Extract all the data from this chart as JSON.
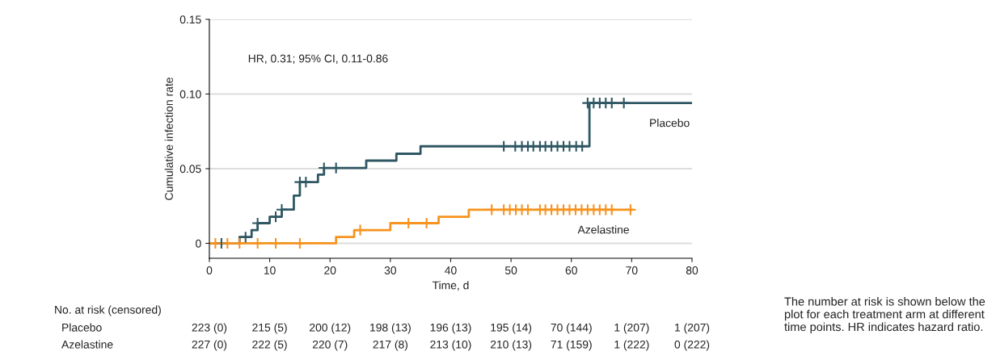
{
  "chart_data": {
    "type": "step",
    "xlabel": "Time, d",
    "ylabel": "Cumulative infection rate",
    "xlim": [
      0,
      80
    ],
    "xticks": [
      0,
      10,
      20,
      30,
      40,
      50,
      60,
      70,
      80
    ],
    "ylim": [
      -0.01,
      0.15
    ],
    "yticks": [
      0,
      0.05,
      {
        "value": 0.1,
        "label": "0.10"
      },
      0.15
    ],
    "grid": "y",
    "legend": false,
    "line_style": "solid",
    "series": [
      {
        "name": "Placebo",
        "color": "#2f5763",
        "x": [
          0,
          5,
          7,
          8,
          10,
          12,
          14,
          15,
          18,
          19,
          26,
          31,
          35,
          63,
          80
        ],
        "values": [
          0,
          0.0042,
          0.0088,
          0.0135,
          0.0178,
          0.0226,
          0.032,
          0.041,
          0.046,
          0.0505,
          0.0554,
          0.06,
          0.065,
          0.094,
          0.094
        ]
      },
      {
        "name": "Azelastine",
        "color": "#f7931e",
        "x": [
          0,
          21,
          24,
          30,
          38,
          43,
          70
        ],
        "values": [
          0,
          0.0043,
          0.0088,
          0.0135,
          0.0178,
          0.0225,
          0.0225
        ]
      },
      {
        "type": "scatter",
        "marker": "cross",
        "color": "#2f5763",
        "x": [
          2,
          6,
          8,
          11,
          12,
          15,
          16,
          19,
          21,
          48.8,
          50.7,
          51.8,
          52.8,
          53.7,
          54.8,
          55.7,
          56.7,
          57.7,
          58.7,
          59.7,
          60.8,
          61.8,
          62.7,
          63.7,
          64.7,
          65.7,
          66.7,
          68.7
        ],
        "values": [
          0,
          0.0042,
          0.0135,
          0.0178,
          0.0226,
          0.041,
          0.041,
          0.0505,
          0.0505,
          0.065,
          0.065,
          0.065,
          0.065,
          0.065,
          0.065,
          0.065,
          0.065,
          0.065,
          0.065,
          0.065,
          0.065,
          0.065,
          0.094,
          0.094,
          0.094,
          0.094,
          0.094,
          0.094
        ]
      },
      {
        "type": "scatter",
        "marker": "cross",
        "color": "#f7931e",
        "x": [
          1,
          3,
          5,
          8,
          11,
          15,
          25,
          33,
          36,
          46.8,
          48.8,
          49.8,
          50.8,
          51.8,
          52.8,
          54.8,
          55.7,
          56.7,
          57.7,
          58.7,
          59.7,
          60.7,
          61.7,
          62.7,
          63.7,
          64.7,
          65.7,
          66.7,
          69.8
        ],
        "values": [
          0,
          0,
          0,
          0,
          0,
          0,
          0.0088,
          0.0135,
          0.0135,
          0.0225,
          0.0225,
          0.0225,
          0.0225,
          0.0225,
          0.0225,
          0.0225,
          0.0225,
          0.0225,
          0.0225,
          0.0225,
          0.0225,
          0.0225,
          0.0225,
          0.0225,
          0.0225,
          0.0225,
          0.0225,
          0.0225,
          0.0225
        ]
      }
    ],
    "annotations": [
      "HR, 0.31; 95% CI, 0.11-0.86",
      "No. at risk (censored)",
      "Placebo",
      "223 (0)",
      "215 (5)",
      "200 (12)",
      "198 (13)",
      "196 (13)",
      "195 (14)",
      "70 (144)",
      "1 (207)",
      "1 (207)",
      "Azelastine",
      "227 (0)",
      "222 (5)",
      "220 (7)",
      "217 (8)",
      "213 (10)",
      "210 (13)",
      "71 (159)",
      "1 (222)",
      "0 (222)",
      "The number at risk is shown below the plot for each treatment arm at different time points. HR indicates hazard ratio."
    ]
  }
}
